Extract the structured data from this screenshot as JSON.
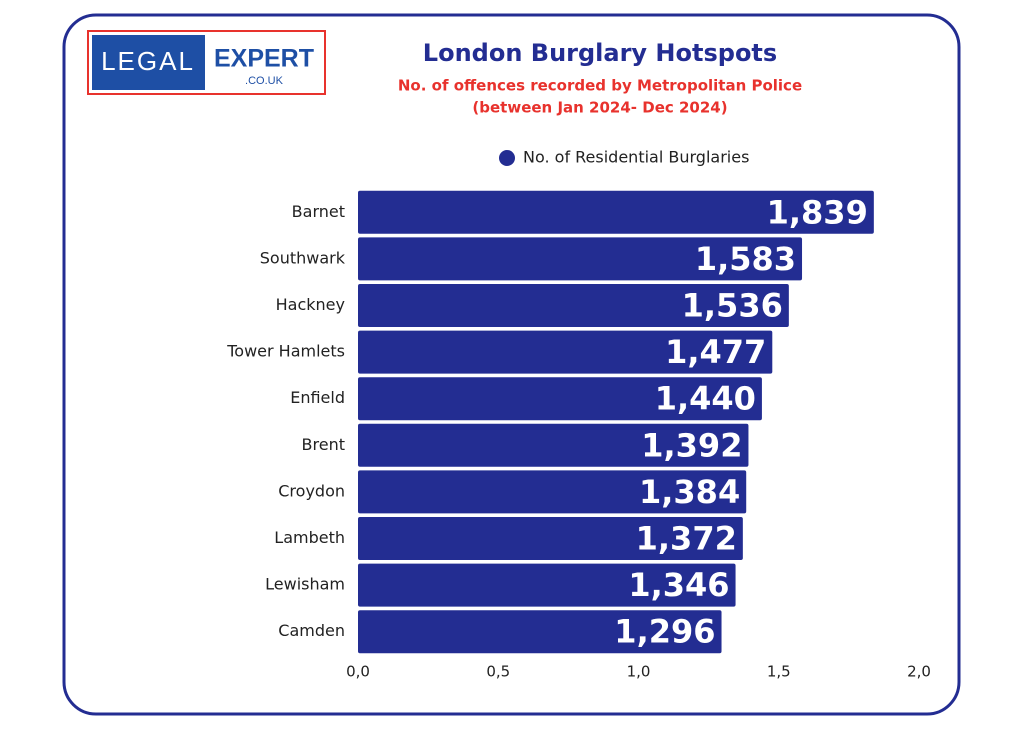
{
  "logo": {
    "left": "LEGAL",
    "right": "EXPERT",
    "domain": ".CO.UK"
  },
  "chart_data": {
    "type": "hbar",
    "title": "London Burglary Hotspots",
    "subtitle": [
      "No. of offences recorded by Metropolitan Police",
      "(between Jan 2024- Dec 2024)"
    ],
    "categories": [
      "Barnet",
      "Southwark",
      "Hackney",
      "Tower Hamlets",
      "Enfield",
      "Brent",
      "Croydon",
      "Lambeth",
      "Lewisham",
      "Camden"
    ],
    "series": [
      {
        "name": "No. of Residential Burglaries",
        "color": "#232d92",
        "values": [
          1.839,
          1.583,
          1.536,
          1.477,
          1.44,
          1.392,
          1.384,
          1.372,
          1.346,
          1.296
        ],
        "value_labels": [
          "1,839",
          "1,583",
          "1,536",
          "1,477",
          "1,440",
          "1,392",
          "1,384",
          "1,372",
          "1,346",
          "1,296"
        ]
      }
    ],
    "xlim": [
      0,
      2
    ],
    "xticks": [
      {
        "value": 0,
        "label": "0,0"
      },
      {
        "value": 0.5,
        "label": "0,5"
      },
      {
        "value": 1,
        "label": "1,0"
      },
      {
        "value": 1.5,
        "label": "1,5"
      },
      {
        "value": 2,
        "label": "2,0"
      }
    ],
    "legend": "top"
  }
}
